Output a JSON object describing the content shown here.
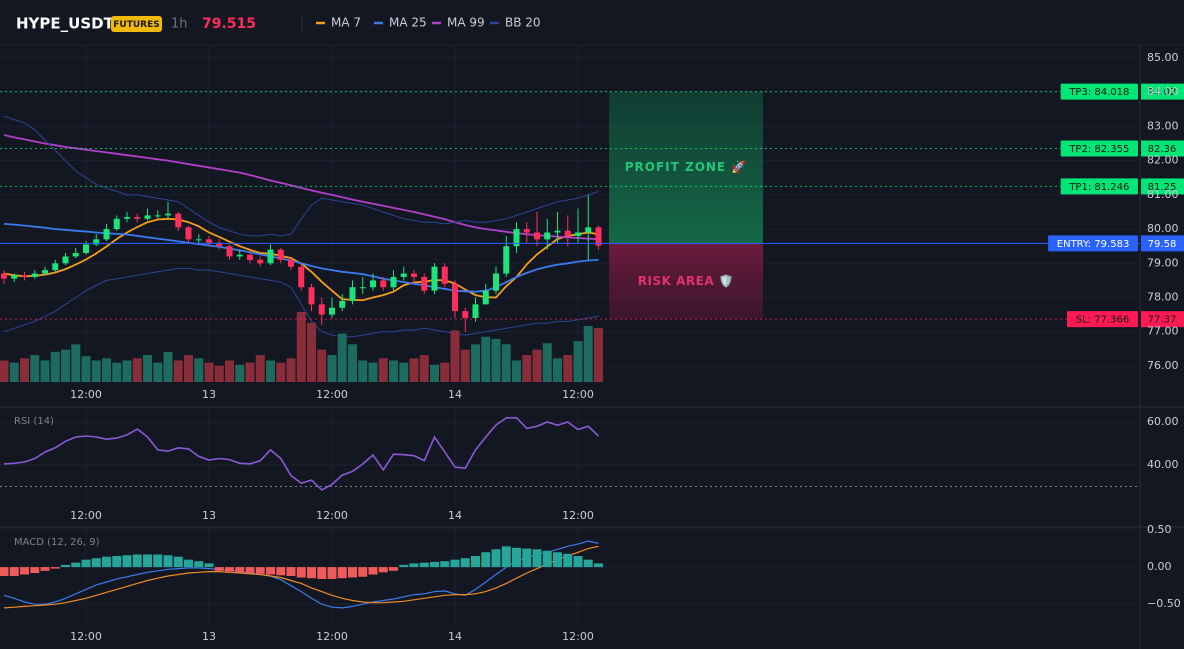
{
  "header": {
    "symbol": "HYPE_USDT",
    "badge": "FUTURES",
    "interval": "1h"
  },
  "chart_data": [
    {
      "type": "candlestick",
      "categories": [
        null,
        null,
        null,
        null,
        null,
        null,
        null,
        null,
        "12:00",
        null,
        null,
        null,
        null,
        null,
        null,
        null,
        null,
        null,
        null,
        null,
        "13",
        null,
        null,
        null,
        null,
        null,
        null,
        null,
        null,
        null,
        null,
        null,
        "12:00",
        null,
        null,
        null,
        null,
        null,
        null,
        null,
        null,
        null,
        null,
        null,
        "14",
        null,
        null,
        null,
        null,
        null,
        null,
        null,
        null,
        null,
        null,
        null,
        "12:00",
        null,
        null
      ],
      "open": [
        78.7,
        78.55,
        78.65,
        78.6,
        78.7,
        78.8,
        79.0,
        79.2,
        79.3,
        79.55,
        79.7,
        80.0,
        80.3,
        80.35,
        80.3,
        80.4,
        80.4,
        80.45,
        80.05,
        79.7,
        79.7,
        79.6,
        79.5,
        79.2,
        79.25,
        79.1,
        79.0,
        79.4,
        79.1,
        78.9,
        78.3,
        77.8,
        77.5,
        77.7,
        77.9,
        78.3,
        78.3,
        78.5,
        78.3,
        78.6,
        78.7,
        78.6,
        78.2,
        78.9,
        78.4,
        77.6,
        77.4,
        77.8,
        78.2,
        78.7,
        79.5,
        80.0,
        79.9,
        79.7,
        79.9,
        79.95,
        79.8,
        79.9,
        80.05
      ],
      "high": [
        78.8,
        78.7,
        78.75,
        78.8,
        78.9,
        79.1,
        79.3,
        79.45,
        79.65,
        79.85,
        80.15,
        80.4,
        80.5,
        80.45,
        80.6,
        80.55,
        80.8,
        80.5,
        80.1,
        79.85,
        79.8,
        79.7,
        79.55,
        79.4,
        79.35,
        79.2,
        79.55,
        79.45,
        79.15,
        79.0,
        78.4,
        78.0,
        78.0,
        78.1,
        78.5,
        78.6,
        78.7,
        78.6,
        78.8,
        78.9,
        78.8,
        78.7,
        79.0,
        79.0,
        78.5,
        77.7,
        78.0,
        78.4,
        78.9,
        79.8,
        80.2,
        80.2,
        80.5,
        80.3,
        80.5,
        80.4,
        80.6,
        81.0,
        80.1
      ],
      "low": [
        78.4,
        78.45,
        78.5,
        78.55,
        78.65,
        78.75,
        78.95,
        79.15,
        79.25,
        79.5,
        79.65,
        79.95,
        80.2,
        80.2,
        80.25,
        80.3,
        80.3,
        79.95,
        79.6,
        79.55,
        79.5,
        79.4,
        79.1,
        79.1,
        79.0,
        78.9,
        78.95,
        79.0,
        78.8,
        78.2,
        77.6,
        77.2,
        77.4,
        77.6,
        77.8,
        78.1,
        78.2,
        78.2,
        78.2,
        78.5,
        78.4,
        78.1,
        78.1,
        78.3,
        77.4,
        77.0,
        77.3,
        77.8,
        78.1,
        78.6,
        79.3,
        79.6,
        79.5,
        79.4,
        79.6,
        79.5,
        79.6,
        79.1,
        79.4
      ],
      "close": [
        78.55,
        78.65,
        78.6,
        78.7,
        78.8,
        79.0,
        79.2,
        79.3,
        79.55,
        79.7,
        80.0,
        80.3,
        80.35,
        80.3,
        80.4,
        80.4,
        80.45,
        80.05,
        79.7,
        79.7,
        79.6,
        79.5,
        79.2,
        79.25,
        79.1,
        79.0,
        79.4,
        79.1,
        78.9,
        78.3,
        77.8,
        77.5,
        77.7,
        77.9,
        78.3,
        78.3,
        78.5,
        78.3,
        78.6,
        78.7,
        78.6,
        78.2,
        78.9,
        78.4,
        77.6,
        77.4,
        77.8,
        78.2,
        78.7,
        79.5,
        80.0,
        79.9,
        79.7,
        79.9,
        79.95,
        79.8,
        79.9,
        80.05,
        79.515
      ],
      "volume": [
        20,
        18,
        22,
        25,
        20,
        28,
        30,
        35,
        24,
        20,
        22,
        18,
        20,
        22,
        25,
        18,
        28,
        20,
        25,
        22,
        18,
        15,
        20,
        16,
        18,
        25,
        20,
        18,
        22,
        65,
        55,
        30,
        25,
        45,
        35,
        20,
        18,
        22,
        20,
        18,
        22,
        25,
        16,
        18,
        48,
        30,
        35,
        42,
        40,
        35,
        20,
        25,
        30,
        36,
        22,
        25,
        38,
        52,
        50
      ],
      "up_color": "#1de37a",
      "down_color": "#ff2e5b",
      "volume_up_color": "#1d6b5e",
      "volume_down_color": "#8a2d3b",
      "series": [
        {
          "name": "MA 7",
          "color": "#f59e1b",
          "values": [
            78.7,
            78.65,
            78.62,
            78.63,
            78.67,
            78.73,
            78.83,
            78.96,
            79.11,
            79.29,
            79.49,
            79.71,
            79.9,
            80.06,
            80.2,
            80.28,
            80.3,
            80.28,
            80.2,
            80.08,
            79.9,
            79.77,
            79.63,
            79.5,
            79.39,
            79.3,
            79.28,
            79.22,
            79.15,
            78.99,
            78.75,
            78.46,
            78.2,
            77.95,
            77.93,
            77.92,
            78.0,
            78.07,
            78.17,
            78.36,
            78.44,
            78.46,
            78.51,
            78.5,
            78.41,
            78.23,
            78.07,
            78.01,
            78.0,
            78.33,
            78.6,
            78.97,
            79.26,
            79.49,
            79.71,
            79.8,
            79.85,
            79.9,
            79.85
          ]
        },
        {
          "name": "MA 25",
          "color": "#3a7bf0",
          "values": [
            80.15,
            80.13,
            80.1,
            80.07,
            80.04,
            80.0,
            79.98,
            79.95,
            79.93,
            79.9,
            79.88,
            79.86,
            79.84,
            79.8,
            79.76,
            79.72,
            79.68,
            79.64,
            79.6,
            79.56,
            79.52,
            79.48,
            79.43,
            79.38,
            79.32,
            79.26,
            79.2,
            79.14,
            79.08,
            79.0,
            78.92,
            78.85,
            78.8,
            78.75,
            78.72,
            78.68,
            78.62,
            78.55,
            78.5,
            78.45,
            78.4,
            78.36,
            78.3,
            78.25,
            78.2,
            78.18,
            78.17,
            78.2,
            78.3,
            78.45,
            78.6,
            78.72,
            78.82,
            78.9,
            78.96,
            79.0,
            79.05,
            79.08,
            79.1
          ]
        },
        {
          "name": "MA 99",
          "color": "#b23fc9",
          "values": [
            82.75,
            82.68,
            82.62,
            82.56,
            82.5,
            82.45,
            82.4,
            82.36,
            82.32,
            82.28,
            82.24,
            82.2,
            82.16,
            82.12,
            82.08,
            82.04,
            82.0,
            81.95,
            81.9,
            81.85,
            81.8,
            81.75,
            81.7,
            81.65,
            81.58,
            81.5,
            81.42,
            81.35,
            81.28,
            81.2,
            81.13,
            81.06,
            81.0,
            80.93,
            80.86,
            80.8,
            80.74,
            80.68,
            80.62,
            80.56,
            80.5,
            80.43,
            80.36,
            80.29,
            80.2,
            80.12,
            80.05,
            80.0,
            79.96,
            79.92,
            79.88,
            79.85,
            79.82,
            79.8,
            79.78,
            79.76,
            79.74,
            79.72,
            79.7
          ]
        },
        {
          "name": "BB 20",
          "color": "#2b4594",
          "upper": [
            83.3,
            83.2,
            83.1,
            82.9,
            82.6,
            82.3,
            82.0,
            81.7,
            81.5,
            81.3,
            81.2,
            81.1,
            81.0,
            81.0,
            80.95,
            80.9,
            80.85,
            80.8,
            80.6,
            80.4,
            80.2,
            80.05,
            79.95,
            79.85,
            79.8,
            79.8,
            79.85,
            79.8,
            79.85,
            80.3,
            80.7,
            80.9,
            80.85,
            80.8,
            80.75,
            80.7,
            80.6,
            80.5,
            80.4,
            80.3,
            80.25,
            80.2,
            80.2,
            80.15,
            80.2,
            80.25,
            80.2,
            80.2,
            80.25,
            80.3,
            80.4,
            80.5,
            80.6,
            80.7,
            80.8,
            80.85,
            80.9,
            81.0,
            81.1
          ],
          "lower": [
            77.0,
            77.1,
            77.2,
            77.3,
            77.45,
            77.6,
            77.8,
            78.0,
            78.2,
            78.35,
            78.5,
            78.55,
            78.6,
            78.65,
            78.7,
            78.75,
            78.8,
            78.85,
            78.85,
            78.8,
            78.8,
            78.75,
            78.7,
            78.65,
            78.6,
            78.55,
            78.5,
            78.45,
            78.3,
            77.8,
            77.3,
            77.0,
            76.9,
            76.85,
            76.85,
            76.9,
            76.95,
            77.0,
            77.0,
            77.05,
            77.05,
            77.1,
            77.05,
            77.0,
            76.95,
            76.9,
            76.95,
            77.0,
            77.05,
            77.1,
            77.15,
            77.2,
            77.25,
            77.25,
            77.3,
            77.3,
            77.35,
            77.4,
            77.45
          ]
        }
      ],
      "levels": [
        {
          "label": "TP3: 84.018",
          "value": 84.018,
          "value_label": "84.02",
          "color": "#00e676"
        },
        {
          "label": "TP2: 82.355",
          "value": 82.355,
          "value_label": "82.36",
          "color": "#00e676"
        },
        {
          "label": "TP1: 81.246",
          "value": 81.246,
          "value_label": "81.25",
          "color": "#00e676"
        },
        {
          "label": "ENTRY: 79.583",
          "value": 79.583,
          "value_label": "79.58",
          "color": "#2962ff"
        },
        {
          "label": "SL: 77.366",
          "value": 77.366,
          "value_label": "77.37",
          "color": "#ff1a55"
        }
      ],
      "profit_label": "PROFIT ZONE 🚀",
      "risk_label": "RISK AREA 🛡️",
      "ylim": [
        75.53,
        85.38
      ],
      "yticks": [
        {
          "value": 76,
          "label": "76.00"
        },
        {
          "value": 77,
          "label": "77.00"
        },
        {
          "value": 78,
          "label": "78.00"
        },
        {
          "value": 79,
          "label": "79.00"
        },
        {
          "value": 80,
          "label": "80.00"
        },
        {
          "value": 81,
          "label": "81.00"
        },
        {
          "value": 82,
          "label": "82.00"
        },
        {
          "value": 83,
          "label": "83.00"
        },
        {
          "value": 84,
          "label": "84.00"
        },
        {
          "value": 85,
          "label": "85.00"
        }
      ]
    },
    {
      "type": "line",
      "title": "RSI (14)",
      "color": "#8a5ad6",
      "values": [
        40.5,
        40.8,
        41.4,
        43,
        46,
        48,
        51,
        53,
        53.5,
        53,
        52,
        52.5,
        54,
        56.7,
        53,
        47,
        46.5,
        48,
        47.5,
        44,
        42.3,
        43,
        42.5,
        40.8,
        40.5,
        42,
        47,
        43,
        35,
        31.6,
        33,
        28.4,
        31,
        35.3,
        37,
        40.5,
        44.6,
        37.7,
        45,
        44.8,
        44.3,
        42,
        53,
        46,
        39,
        38.5,
        47,
        53,
        58.6,
        61.9,
        62,
        57,
        58,
        60,
        58.5,
        60,
        56.5,
        58,
        53.5
      ],
      "levels": [
        30
      ],
      "ylim": [
        21.4,
        66.5
      ],
      "yticks": [
        {
          "value": 40,
          "label": "40.00"
        },
        {
          "value": 60,
          "label": "60.00"
        }
      ]
    },
    {
      "type": "macd",
      "title": "MACD (12, 26, 9)",
      "macd": [
        -0.38,
        -0.42,
        -0.47,
        -0.5,
        -0.5,
        -0.47,
        -0.42,
        -0.36,
        -0.3,
        -0.24,
        -0.2,
        -0.16,
        -0.13,
        -0.1,
        -0.07,
        -0.05,
        -0.03,
        -0.02,
        -0.01,
        -0.01,
        -0.02,
        -0.03,
        -0.04,
        -0.06,
        -0.08,
        -0.1,
        -0.12,
        -0.17,
        -0.25,
        -0.33,
        -0.42,
        -0.5,
        -0.54,
        -0.55,
        -0.53,
        -0.5,
        -0.47,
        -0.45,
        -0.43,
        -0.4,
        -0.37,
        -0.36,
        -0.33,
        -0.32,
        -0.36,
        -0.38,
        -0.3,
        -0.2,
        -0.1,
        0.0,
        0.08,
        0.13,
        0.17,
        0.2,
        0.24,
        0.28,
        0.31,
        0.35,
        0.32
      ],
      "signal": [
        -0.55,
        -0.54,
        -0.53,
        -0.52,
        -0.51,
        -0.5,
        -0.48,
        -0.45,
        -0.42,
        -0.38,
        -0.34,
        -0.3,
        -0.26,
        -0.22,
        -0.18,
        -0.15,
        -0.12,
        -0.1,
        -0.08,
        -0.07,
        -0.06,
        -0.06,
        -0.07,
        -0.08,
        -0.09,
        -0.1,
        -0.12,
        -0.14,
        -0.18,
        -0.22,
        -0.28,
        -0.33,
        -0.38,
        -0.42,
        -0.45,
        -0.47,
        -0.48,
        -0.48,
        -0.47,
        -0.46,
        -0.44,
        -0.42,
        -0.4,
        -0.38,
        -0.37,
        -0.37,
        -0.36,
        -0.33,
        -0.28,
        -0.22,
        -0.15,
        -0.08,
        -0.02,
        0.04,
        0.1,
        0.15,
        0.2,
        0.25,
        0.28
      ],
      "histogram": [
        -0.12,
        -0.12,
        -0.1,
        -0.08,
        -0.05,
        -0.02,
        0.03,
        0.06,
        0.1,
        0.12,
        0.14,
        0.15,
        0.16,
        0.17,
        0.17,
        0.17,
        0.16,
        0.14,
        0.1,
        0.08,
        0.05,
        -0.05,
        -0.06,
        -0.07,
        -0.08,
        -0.09,
        -0.1,
        -0.11,
        -0.12,
        -0.14,
        -0.15,
        -0.16,
        -0.16,
        -0.15,
        -0.14,
        -0.13,
        -0.1,
        -0.07,
        -0.05,
        0.03,
        0.05,
        0.06,
        0.07,
        0.08,
        0.1,
        0.12,
        0.15,
        0.2,
        0.24,
        0.28,
        0.26,
        0.25,
        0.24,
        0.22,
        0.2,
        0.18,
        0.15,
        0.1,
        0.05
      ],
      "macd_color": "#3b7be8",
      "signal_color": "#f08a24",
      "hist_up_color": "#26a69a",
      "hist_down_color": "#ef5a5a",
      "ylim": [
        -0.78,
        0.527
      ],
      "yticks": [
        {
          "value": -0.5,
          "label": "−0.50"
        },
        {
          "value": 0,
          "label": "0.00"
        },
        {
          "value": 0.5,
          "label": "0.50"
        }
      ]
    }
  ]
}
